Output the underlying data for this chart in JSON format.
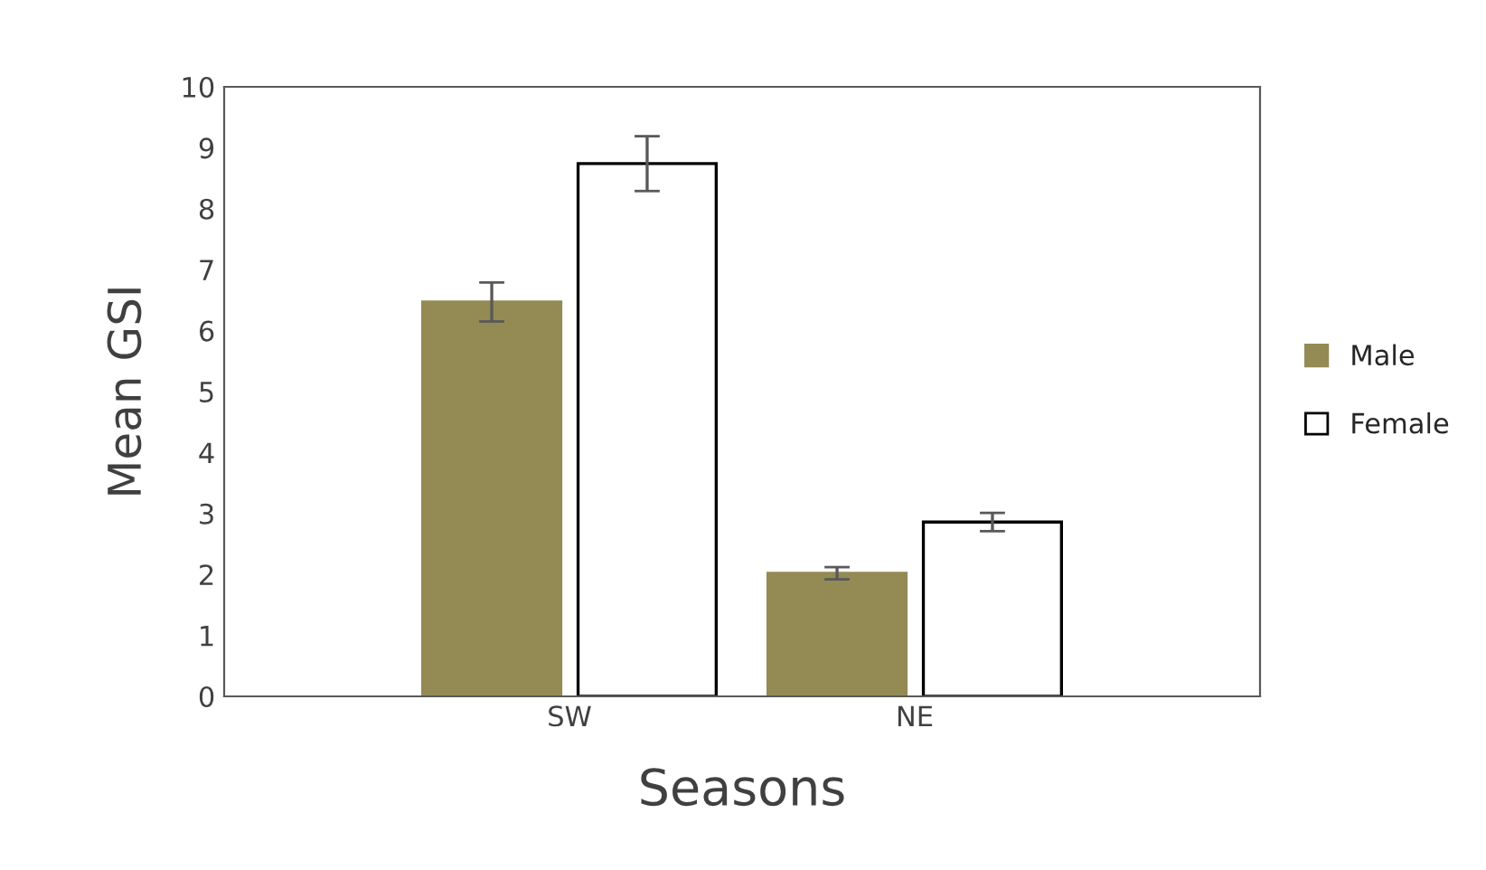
{
  "chart_data": {
    "type": "bar",
    "xlabel": "Seasons",
    "ylabel": "Mean GSI",
    "categories": [
      "SW",
      "NE"
    ],
    "series": [
      {
        "name": "Male",
        "color": "#948a54",
        "values": [
          6.47,
          2.02
        ],
        "errors": [
          0.32,
          0.1
        ]
      },
      {
        "name": "Female",
        "color": "#ffffff",
        "values": [
          8.74,
          2.86
        ],
        "errors": [
          0.45,
          0.15
        ]
      }
    ],
    "ylim": [
      0,
      10
    ],
    "yticks": [
      0,
      1,
      2,
      3,
      4,
      5,
      6,
      7,
      8,
      9,
      10
    ],
    "grid": false,
    "legend": "right"
  }
}
